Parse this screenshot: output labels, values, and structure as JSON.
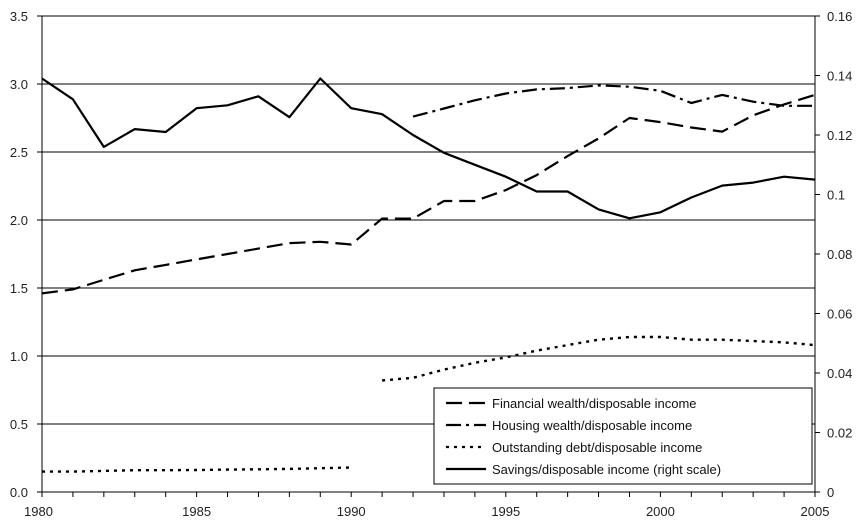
{
  "chart_data": {
    "type": "line",
    "title": "",
    "xlabel": "",
    "ylabel": "",
    "y2label": "",
    "x": [
      1980,
      1981,
      1982,
      1983,
      1984,
      1985,
      1986,
      1987,
      1988,
      1989,
      1990,
      1991,
      1992,
      1993,
      1994,
      1995,
      1996,
      1997,
      1998,
      1999,
      2000,
      2001,
      2002,
      2003,
      2004,
      2005
    ],
    "xlim": [
      1980,
      2005
    ],
    "ylim": [
      0,
      3.5
    ],
    "y2lim": [
      0,
      0.16
    ],
    "grid": true,
    "legend_position": "bottom-right",
    "x_ticks": [
      "1980",
      "1985",
      "1990",
      "1995",
      "2000",
      "2005"
    ],
    "y_ticks": [
      "0.0",
      "0.5",
      "1.0",
      "1.5",
      "2.0",
      "2.5",
      "3.0",
      "3.5"
    ],
    "y2_ticks": [
      "0",
      "0.02",
      "0.04",
      "0.06",
      "0.08",
      "0.1",
      "0.12",
      "0.14",
      "0.16"
    ],
    "series": [
      {
        "name": "Financial wealth/disposable income",
        "axis": "left",
        "style": "long-dash",
        "values": [
          1.46,
          1.49,
          1.56,
          1.63,
          1.67,
          1.71,
          1.75,
          1.79,
          1.83,
          1.84,
          1.82,
          2.01,
          2.01,
          2.14,
          2.14,
          2.22,
          2.33,
          2.47,
          2.6,
          2.75,
          2.72,
          2.68,
          2.65,
          2.77,
          2.85,
          2.92
        ]
      },
      {
        "name": "Housing wealth/disposable income",
        "axis": "left",
        "style": "dash-dot",
        "values": [
          null,
          null,
          null,
          null,
          null,
          null,
          null,
          null,
          null,
          null,
          null,
          null,
          2.76,
          2.82,
          2.88,
          2.93,
          2.96,
          2.97,
          2.99,
          2.98,
          2.95,
          2.86,
          2.92,
          2.87,
          2.84,
          2.84
        ]
      },
      {
        "name": "Outstanding debt/disposable income",
        "axis": "left",
        "style": "dotted",
        "values": [
          0.15,
          0.15,
          0.155,
          0.16,
          0.16,
          0.162,
          0.165,
          0.167,
          0.17,
          0.175,
          0.18,
          0.82,
          0.84,
          0.9,
          0.95,
          0.99,
          1.04,
          1.08,
          1.12,
          1.14,
          1.14,
          1.12,
          1.12,
          1.11,
          1.1,
          1.08
        ]
      },
      {
        "name": "Savings/disposable income (right scale)",
        "axis": "right",
        "style": "solid",
        "values": [
          0.139,
          0.132,
          0.116,
          0.122,
          0.121,
          0.129,
          0.13,
          0.133,
          0.126,
          0.139,
          0.129,
          0.127,
          0.12,
          0.114,
          0.11,
          0.106,
          0.101,
          0.101,
          0.095,
          0.092,
          0.094,
          0.099,
          0.103,
          0.104,
          0.106,
          0.105
        ]
      }
    ]
  }
}
